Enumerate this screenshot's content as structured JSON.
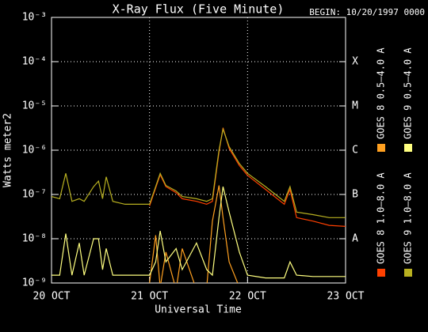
{
  "chart_data": {
    "type": "line",
    "title": "X-Ray Flux (Five Minute)",
    "subtitle": "BEGIN: 10/20/1997 0000",
    "x_label": "Universal Time",
    "y_label": "Watts meter2",
    "y_scale": "log",
    "grid": true,
    "xlim": [
      0,
      72
    ],
    "xticks": [
      {
        "value": 0,
        "label": "20 OCT"
      },
      {
        "value": 24,
        "label": "21 OCT"
      },
      {
        "value": 48,
        "label": "22 OCT"
      },
      {
        "value": 72,
        "label": "23 OCT"
      }
    ],
    "ylim": [
      1e-09,
      0.001
    ],
    "yticks": [
      {
        "value": 1e-09,
        "label": "10⁻⁹"
      },
      {
        "value": 1e-08,
        "label": "10⁻⁸"
      },
      {
        "value": 1e-07,
        "label": "10⁻⁷"
      },
      {
        "value": 1e-06,
        "label": "10⁻⁶"
      },
      {
        "value": 1e-05,
        "label": "10⁻⁵"
      },
      {
        "value": 0.0001,
        "label": "10⁻⁴"
      },
      {
        "value": 0.001,
        "label": "10⁻³"
      }
    ],
    "class_labels": [
      {
        "value": 1e-08,
        "label": "A"
      },
      {
        "value": 1e-07,
        "label": "B"
      },
      {
        "value": 1e-06,
        "label": "C"
      },
      {
        "value": 1e-05,
        "label": "M"
      },
      {
        "value": 0.0001,
        "label": "X"
      }
    ],
    "x": [
      0,
      2,
      3.5,
      5,
      6.8,
      8,
      10.3,
      11.5,
      12.5,
      13.4,
      15,
      18,
      22,
      24,
      25.5,
      26.6,
      28,
      30.5,
      32,
      35.5,
      38,
      39.4,
      41,
      42,
      43.5,
      46,
      48,
      52.4,
      57,
      58.4,
      60,
      64,
      68,
      72
    ],
    "series": [
      {
        "name": "GOES 8 1.0–8.0 A",
        "color": "#ff4000",
        "values": [
          null,
          null,
          null,
          null,
          null,
          null,
          null,
          null,
          null,
          null,
          null,
          null,
          null,
          5.5e-08,
          1.4e-07,
          2.8e-07,
          1.5e-07,
          1.1e-07,
          8e-08,
          7e-08,
          6e-08,
          7e-08,
          9e-07,
          3.2e-06,
          1.1e-06,
          4.5e-07,
          2.7e-07,
          1.3e-07,
          6e-08,
          1.3e-07,
          3e-08,
          2.5e-08,
          2e-08,
          1.9e-08
        ]
      },
      {
        "name": "GOES 8 0.5–4.0 A",
        "color": "#ffa020",
        "values": [
          null,
          null,
          null,
          null,
          null,
          null,
          null,
          null,
          null,
          null,
          null,
          null,
          null,
          1e-09,
          1.2e-08,
          8e-10,
          5e-09,
          7e-10,
          6e-09,
          7e-10,
          8e-10,
          2.5e-08,
          1.6e-07,
          3e-08,
          3e-09,
          8e-10,
          7e-10,
          7e-10,
          7e-10,
          7e-10,
          7e-10,
          7e-10,
          7e-10,
          7e-10
        ]
      },
      {
        "name": "GOES 9 1.0–8.0 A",
        "color": "#b8b020",
        "values": [
          9e-08,
          8e-08,
          3e-07,
          7e-08,
          8e-08,
          7e-08,
          1.5e-07,
          2e-07,
          8e-08,
          2.5e-07,
          7e-08,
          6e-08,
          6e-08,
          6e-08,
          1.5e-07,
          3e-07,
          1.6e-07,
          1.2e-07,
          9e-08,
          8e-08,
          7e-08,
          8e-08,
          1e-06,
          3e-06,
          1.2e-06,
          5e-07,
          3e-07,
          1.5e-07,
          7e-08,
          1.5e-07,
          4e-08,
          3.5e-08,
          3e-08,
          3e-08
        ]
      },
      {
        "name": "GOES 9 0.5–4.0 A",
        "color": "#ffff80",
        "values": [
          1.5e-09,
          1.5e-09,
          1.3e-08,
          1.5e-09,
          8e-09,
          1.5e-09,
          1e-08,
          1e-08,
          2e-09,
          6e-09,
          1.5e-09,
          1.5e-09,
          1.5e-09,
          1.5e-09,
          3e-09,
          1.5e-08,
          3e-09,
          6e-09,
          2e-09,
          8e-09,
          2e-09,
          1.5e-09,
          3e-08,
          1.5e-07,
          4e-08,
          5e-09,
          1.5e-09,
          1.3e-09,
          1.3e-09,
          3e-09,
          1.5e-09,
          1.4e-09,
          1.4e-09,
          1.4e-09
        ]
      }
    ]
  }
}
